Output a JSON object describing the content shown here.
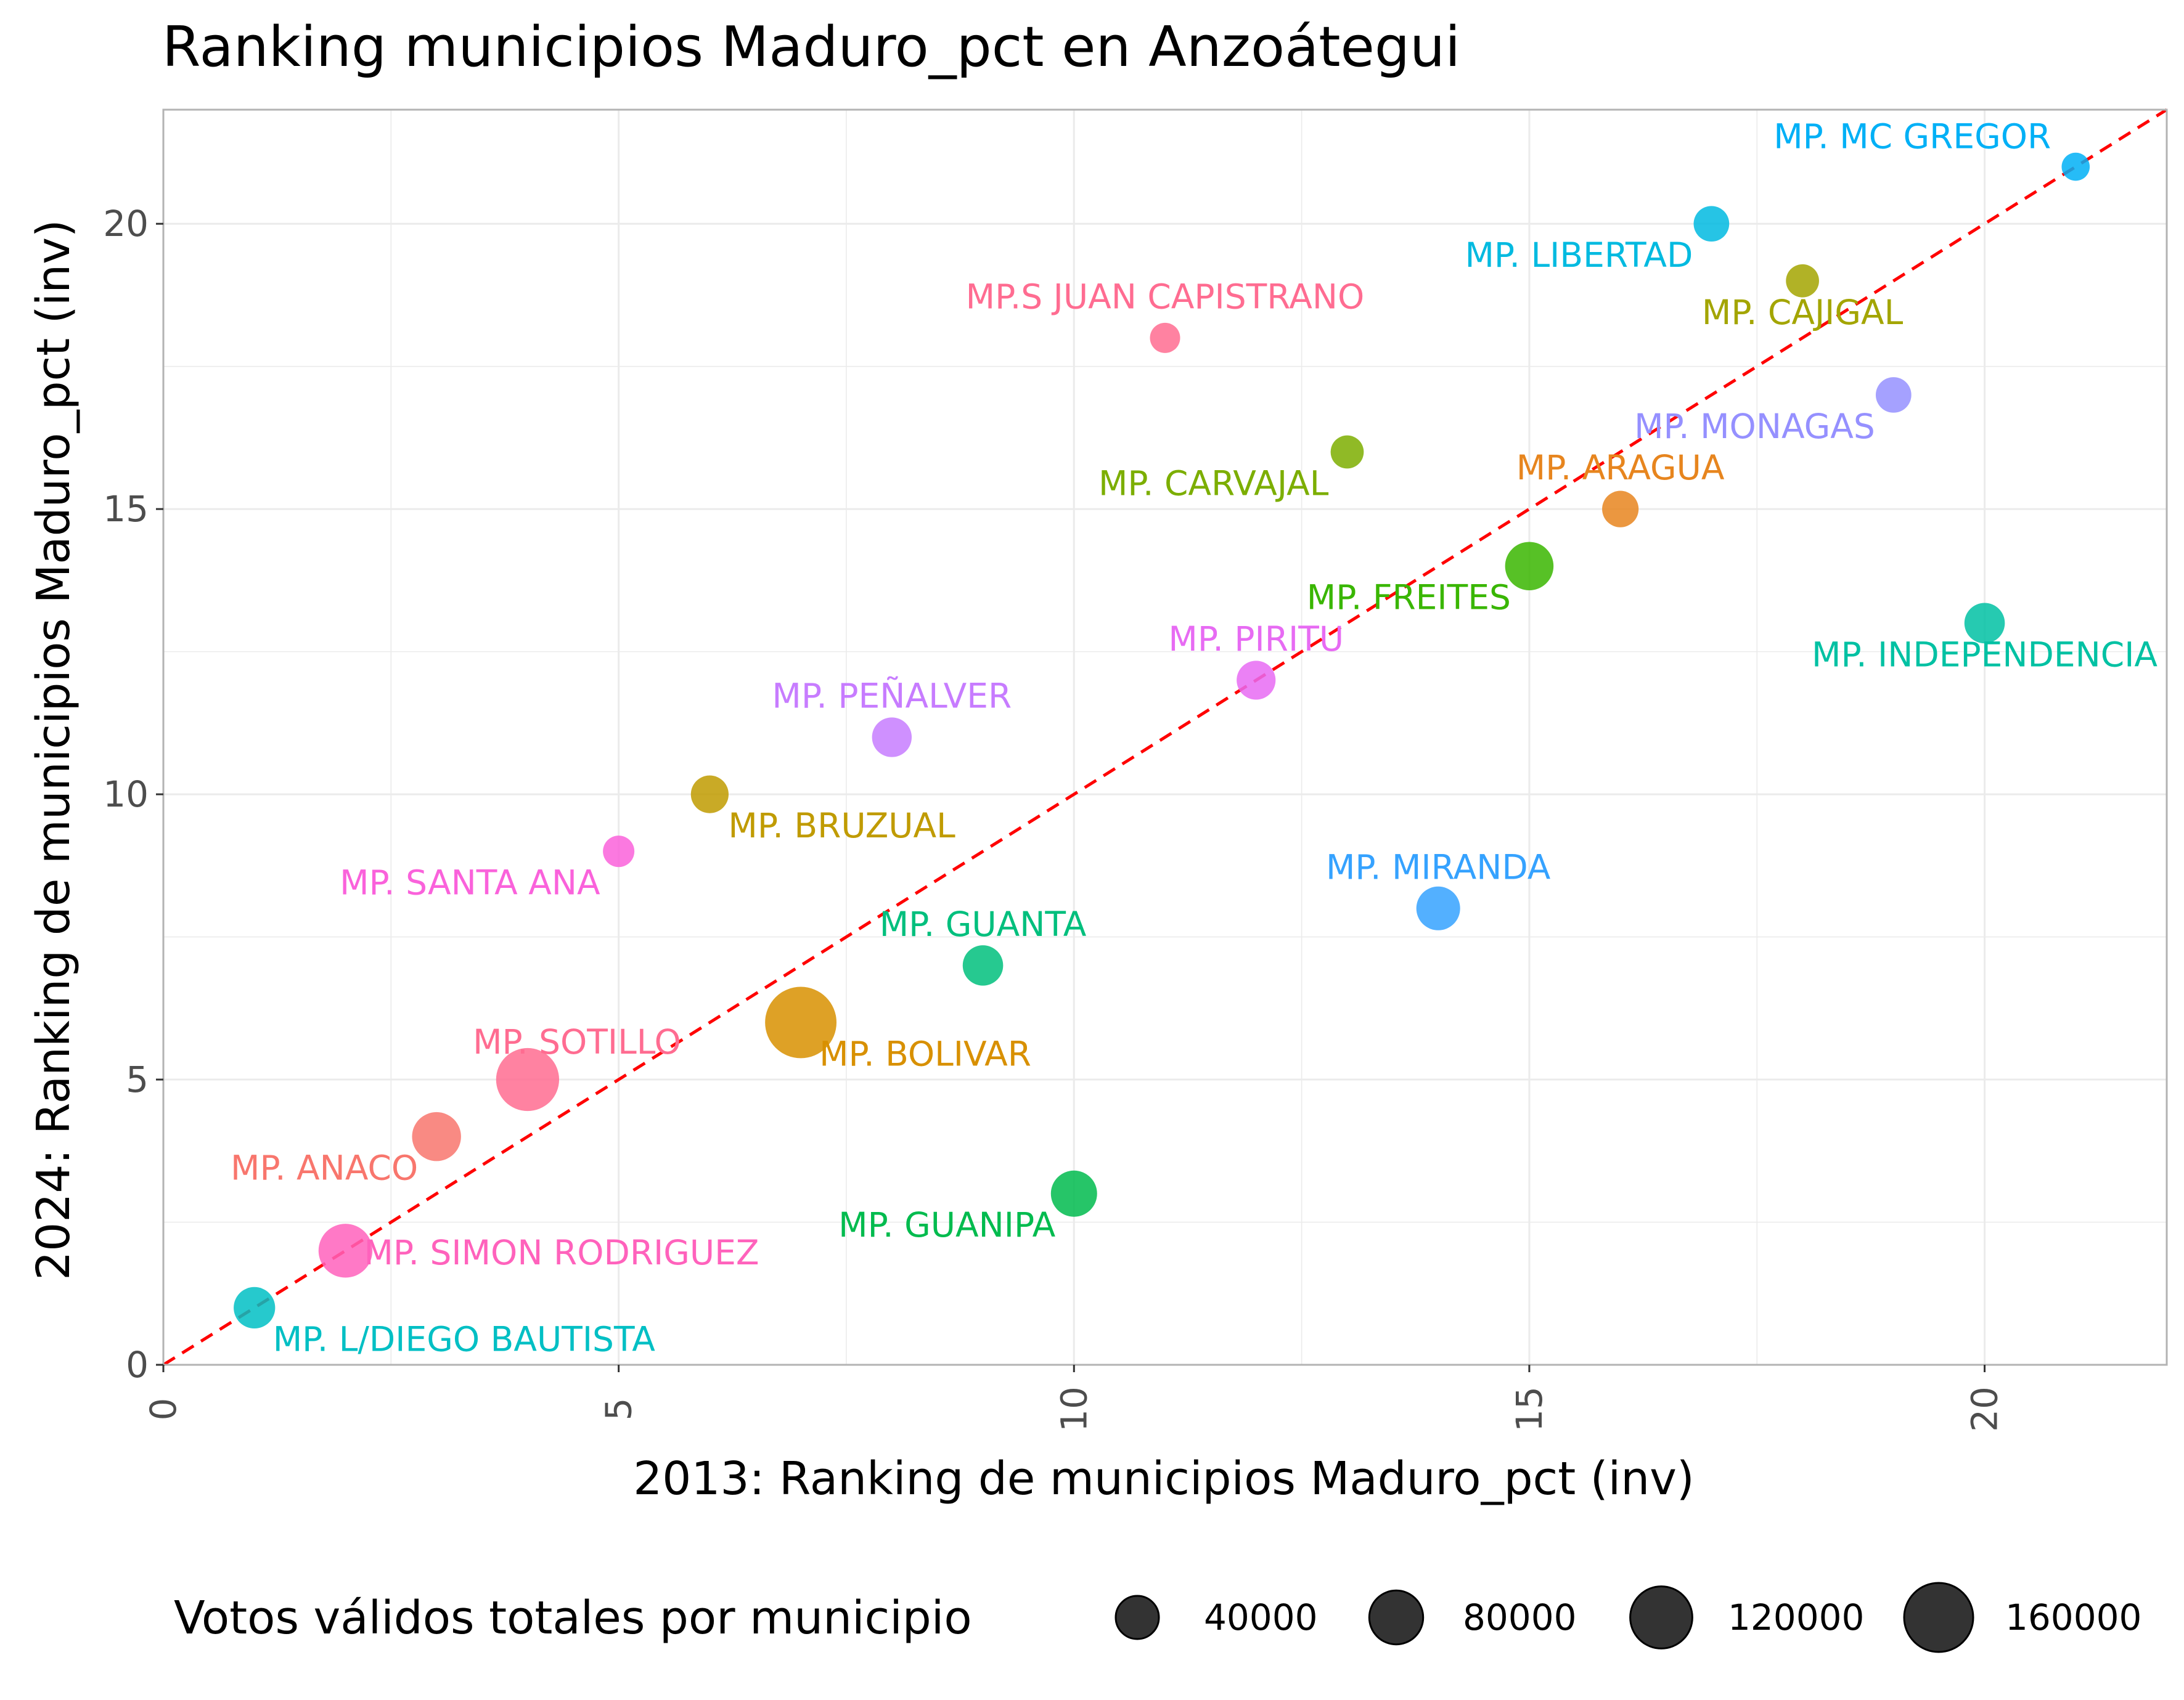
{
  "chart_data": {
    "type": "scatter",
    "title": "Ranking municipios Maduro_pct en Anzoátegui",
    "xlabel": "2013: Ranking de municipios Maduro_pct (inv)",
    "ylabel": "2024: Ranking de municipios Maduro_pct (inv)",
    "xlim": [
      0,
      22
    ],
    "ylim": [
      0,
      22
    ],
    "x_ticks": [
      0,
      5,
      10,
      15,
      20
    ],
    "y_ticks": [
      0,
      5,
      10,
      15,
      20
    ],
    "x_tick_labels": [
      "0",
      "5",
      "10",
      "15",
      "20"
    ],
    "y_tick_labels": [
      "0",
      "5",
      "10",
      "15",
      "20"
    ],
    "grid": true,
    "reference_line": {
      "type": "identity",
      "color": "#FF0000",
      "style": "dashed"
    },
    "size_legend": {
      "title": "Votos válidos totales por municipio",
      "placement": "bottom",
      "values": [
        40000,
        80000,
        120000,
        160000
      ],
      "labels": [
        "40000",
        "80000",
        "120000",
        "160000"
      ]
    },
    "points": [
      {
        "label": "MP. ANACO",
        "x": 3,
        "y": 4,
        "votes": 60000,
        "color": "#F8766D",
        "label_pos": "below-left"
      },
      {
        "label": "MP. ARAGUA",
        "x": 16,
        "y": 15,
        "votes": 22000,
        "color": "#E7851E",
        "label_pos": "above"
      },
      {
        "label": "MP. BOLIVAR",
        "x": 7,
        "y": 6,
        "votes": 175000,
        "color": "#D89000",
        "label_pos": "below-right"
      },
      {
        "label": "MP. BRUZUAL",
        "x": 6,
        "y": 10,
        "votes": 25000,
        "color": "#C09B00",
        "label_pos": "below-right"
      },
      {
        "label": "MP. CAJIGAL",
        "x": 18,
        "y": 19,
        "votes": 15000,
        "color": "#A3A500",
        "label_pos": "below"
      },
      {
        "label": "MP. CARVAJAL",
        "x": 13,
        "y": 16,
        "votes": 15000,
        "color": "#7CAE00",
        "label_pos": "below-left"
      },
      {
        "label": "MP. FREITES",
        "x": 15,
        "y": 14,
        "votes": 58000,
        "color": "#39B600",
        "label_pos": "below-left"
      },
      {
        "label": "MP. GUANIPA",
        "x": 10,
        "y": 3,
        "votes": 50000,
        "color": "#00BB4E",
        "label_pos": "below-left"
      },
      {
        "label": "MP. GUANTA",
        "x": 9,
        "y": 7,
        "votes": 32000,
        "color": "#00BF7D",
        "label_pos": "above"
      },
      {
        "label": "MP. INDEPENDENCIA",
        "x": 20,
        "y": 13,
        "votes": 32000,
        "color": "#00C1A3",
        "label_pos": "below"
      },
      {
        "label": "MP. L/DIEGO BAUTISTA",
        "x": 1,
        "y": 1,
        "votes": 35000,
        "color": "#00BFC4",
        "label_pos": "below-right"
      },
      {
        "label": "MP. LIBERTAD",
        "x": 17,
        "y": 20,
        "votes": 20000,
        "color": "#00BAE0",
        "label_pos": "below-left"
      },
      {
        "label": "MP. MC GREGOR",
        "x": 21,
        "y": 21,
        "votes": 7000,
        "color": "#00B0F6",
        "label_pos": "above-left"
      },
      {
        "label": "MP. MIRANDA",
        "x": 14,
        "y": 8,
        "votes": 42000,
        "color": "#35A2FF",
        "label_pos": "above"
      },
      {
        "label": "MP. MONAGAS",
        "x": 19,
        "y": 17,
        "votes": 20000,
        "color": "#9590FF",
        "label_pos": "below-left"
      },
      {
        "label": "MP. PEÑALVER",
        "x": 8,
        "y": 11,
        "votes": 30000,
        "color": "#C77CFF",
        "label_pos": "above"
      },
      {
        "label": "MP. PIRITU",
        "x": 12,
        "y": 12,
        "votes": 28000,
        "color": "#E76BF3",
        "label_pos": "above"
      },
      {
        "label": "MP. SANTA ANA",
        "x": 5,
        "y": 9,
        "votes": 12000,
        "color": "#FA62DB",
        "label_pos": "below-left"
      },
      {
        "label": "MP. SIMON RODRIGUEZ",
        "x": 2,
        "y": 2,
        "votes": 80000,
        "color": "#FF62BC",
        "label_pos": "right"
      },
      {
        "label": "MP. SOTILLO",
        "x": 4,
        "y": 5,
        "votes": 125000,
        "color": "#FF6C91",
        "label_pos": "above-right"
      },
      {
        "label": "MP.S JUAN CAPISTRANO",
        "x": 11,
        "y": 18,
        "votes": 10000,
        "color": "#FF6C91",
        "label_pos": "above"
      }
    ]
  }
}
